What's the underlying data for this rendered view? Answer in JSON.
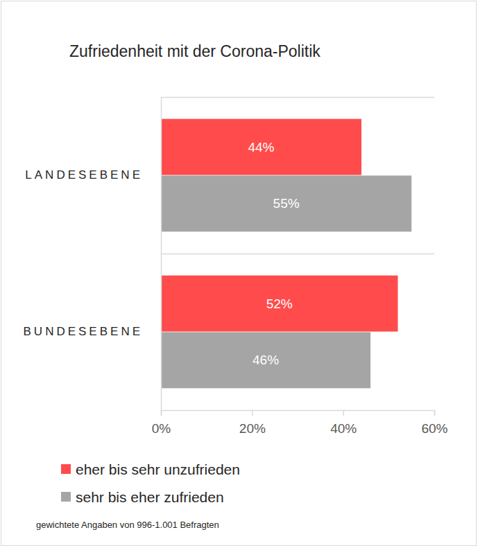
{
  "chart_data": {
    "type": "bar",
    "title": "Zufriedenheit mit der Corona-Politik",
    "orientation": "horizontal",
    "categories": [
      "LANDESEBENE",
      "BUNDESEBENE"
    ],
    "series": [
      {
        "name": "eher bis sehr unzufrieden",
        "color": "#ff4b4b",
        "values": [
          44,
          52
        ],
        "value_labels": [
          "44%",
          "52%"
        ]
      },
      {
        "name": "sehr bis eher zufrieden",
        "color": "#a5a5a5",
        "values": [
          55,
          46
        ],
        "value_labels": [
          "55%",
          "46%"
        ]
      }
    ],
    "xlim": [
      0,
      60
    ],
    "xticks": [
      {
        "value": 0,
        "label": "0%"
      },
      {
        "value": 20,
        "label": "20%"
      },
      {
        "value": 40,
        "label": "40%"
      },
      {
        "value": 60,
        "label": "60%"
      }
    ],
    "grid": false,
    "data_labels": true,
    "legend": "bottom",
    "annotations": [
      "gewichtete Angaben von 996-1.001 Befragten"
    ]
  }
}
